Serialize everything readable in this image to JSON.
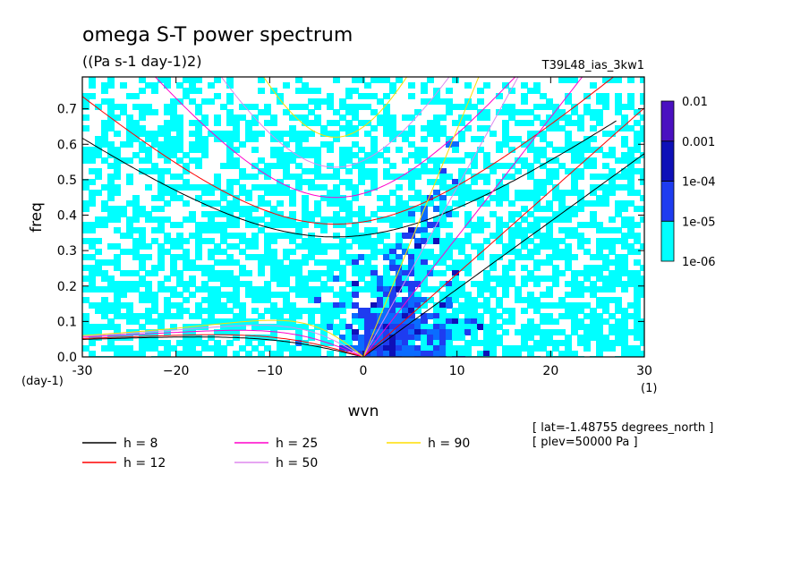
{
  "header": {
    "title": "omega S-T power spectrum",
    "units": "((Pa s-1 day-1)2)",
    "run_name": "T39L48_ias_3kw1"
  },
  "chart_data": {
    "type": "heatmap",
    "title": "omega S-T power spectrum",
    "subtitle": "((Pa s-1 day-1)2)",
    "xlabel": "wvn",
    "xunit": "(1)",
    "ylabel": "freq",
    "yunit": "(day-1)",
    "xlim": [
      -30,
      30
    ],
    "ylim": [
      0,
      0.79
    ],
    "xticks": [
      -30,
      -20,
      -10,
      0,
      10,
      20,
      30
    ],
    "yticks": [
      0.0,
      0.1,
      0.2,
      0.3,
      0.4,
      0.5,
      0.6,
      0.7
    ],
    "xtick_labels": [
      "-30",
      "−20",
      "−10",
      "0",
      "10",
      "20",
      "30"
    ],
    "ytick_labels": [
      "0.0",
      "0.1",
      "0.2",
      "0.3",
      "0.4",
      "0.5",
      "0.6",
      "0.7"
    ],
    "colorbar": {
      "levels": [
        "1e-06",
        "1e-05",
        "1e-04",
        "0.001",
        "0.01"
      ],
      "colors": [
        "#00ffff",
        "#0a6cff",
        "#1e3cf0",
        "#0e10b8",
        "#4a10c0"
      ]
    },
    "dispersion_curves": [
      {
        "name": "h =  8",
        "h": 8,
        "color": "#000000"
      },
      {
        "name": "h = 12",
        "h": 12,
        "color": "#ff0000"
      },
      {
        "name": "h = 25",
        "h": 25,
        "color": "#ff00cc"
      },
      {
        "name": "h = 50",
        "h": 50,
        "color": "#dd88ee"
      },
      {
        "name": "h = 90",
        "h": 90,
        "color": "#ffdd00"
      }
    ],
    "annotations": [
      "[ lat=-1.48755 degrees_north ]",
      "[ plev=50000 Pa ]"
    ]
  }
}
